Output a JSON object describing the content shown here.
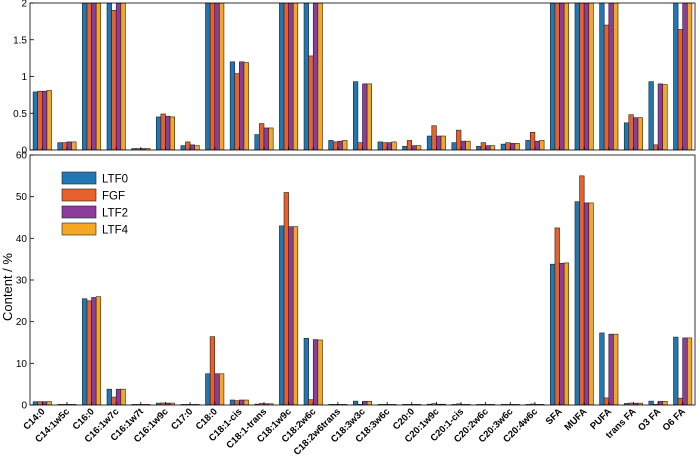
{
  "colors": {
    "LTF0": "#1f77b4",
    "FGF": "#e8602c",
    "LTF2": "#8c3c9c",
    "LTF4": "#f5a623"
  },
  "chart_data": {
    "type": "bar",
    "ylabel": "Content / %",
    "categories": [
      "C14:0",
      "C14:1w5c",
      "C16:0",
      "C16:1w7c",
      "C16:1w7t",
      "C16:1w9c",
      "C17:0",
      "C18:0",
      "C18:1-cis",
      "C18:1-trans",
      "C18:1w9c",
      "C18:2w6c",
      "C18:2w6trans",
      "C18:3w3c",
      "C18:3w6c",
      "C20:0",
      "C20:1w9c",
      "C20:1-cis",
      "C20:2w6c",
      "C20:3w6c",
      "C20:4w6c",
      "SFA",
      "MUFA",
      "PUFA",
      "trans FA",
      "O3 FA",
      "O6 FA"
    ],
    "series": [
      {
        "name": "LTF0",
        "values": [
          0.79,
          0.1,
          25.5,
          3.8,
          0.02,
          0.45,
          0.06,
          7.5,
          1.2,
          0.21,
          43.0,
          16.0,
          0.13,
          0.93,
          0.11,
          0.05,
          0.19,
          0.1,
          0.05,
          0.08,
          0.13,
          33.8,
          48.8,
          17.3,
          0.37,
          0.93,
          16.3
        ]
      },
      {
        "name": "FGF",
        "values": [
          0.8,
          0.1,
          25.0,
          1.9,
          0.02,
          0.49,
          0.11,
          16.4,
          1.04,
          0.36,
          51.0,
          1.28,
          0.11,
          0.1,
          0.1,
          0.13,
          0.33,
          0.27,
          0.1,
          0.1,
          0.24,
          42.5,
          55.0,
          1.7,
          0.48,
          0.07,
          1.64
        ]
      },
      {
        "name": "LTF2",
        "values": [
          0.8,
          0.11,
          25.8,
          3.8,
          0.02,
          0.46,
          0.07,
          7.5,
          1.2,
          0.3,
          42.8,
          15.7,
          0.12,
          0.9,
          0.1,
          0.06,
          0.19,
          0.12,
          0.06,
          0.09,
          0.12,
          34.0,
          48.5,
          17.0,
          0.44,
          0.9,
          16.1
        ]
      },
      {
        "name": "LTF4",
        "values": [
          0.81,
          0.11,
          26.0,
          3.8,
          0.02,
          0.45,
          0.06,
          7.5,
          1.19,
          0.3,
          42.8,
          15.6,
          0.13,
          0.9,
          0.11,
          0.06,
          0.19,
          0.12,
          0.06,
          0.09,
          0.13,
          34.1,
          48.5,
          17.0,
          0.44,
          0.89,
          16.1
        ]
      }
    ],
    "panels": [
      {
        "name": "zoom",
        "ylim": [
          0,
          2
        ],
        "yticks": [
          0,
          0.5,
          1,
          1.5,
          2
        ],
        "ytick_labels": [
          "0",
          "0.5",
          "1",
          "1.5",
          "2"
        ]
      },
      {
        "name": "main",
        "ylim": [
          0,
          60
        ],
        "yticks": [
          0,
          10,
          20,
          30,
          40,
          50,
          60
        ],
        "ytick_labels": [
          "0",
          "10",
          "20",
          "30",
          "40",
          "50",
          "60"
        ]
      }
    ],
    "legend": {
      "position": "top-left",
      "entries": [
        "LTF0",
        "FGF",
        "LTF2",
        "LTF4"
      ]
    }
  }
}
